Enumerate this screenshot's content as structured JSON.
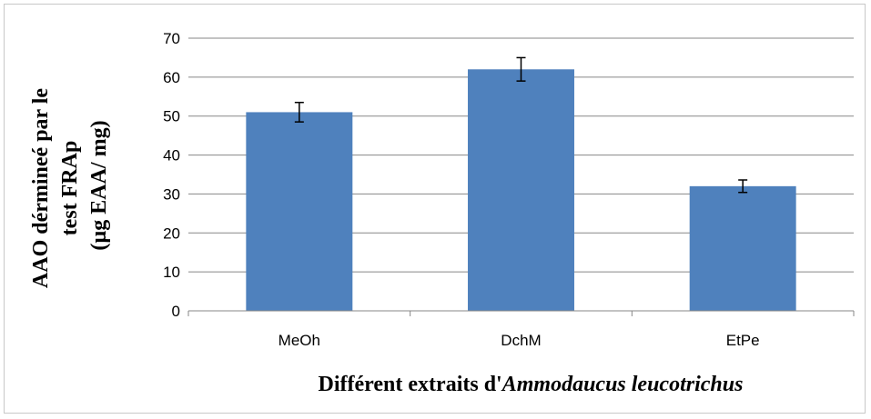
{
  "chart_data": {
    "type": "bar",
    "categories": [
      "MeOh",
      "DchM",
      "EtPe"
    ],
    "values": [
      51,
      62,
      32
    ],
    "error": [
      2.5,
      3.0,
      1.6
    ],
    "ylim": [
      0,
      70
    ],
    "yticks": [
      0,
      10,
      20,
      30,
      40,
      50,
      60,
      70
    ],
    "grid": true,
    "bar_color": "#4f81bd",
    "ylabel_lines": [
      "AAO dérmineé par le",
      "test FRAp",
      "(µg EAA/ mg)"
    ],
    "xlabel_prefix": "Différent extraits d'",
    "xlabel_species": "Ammodaucus leucotrichus"
  }
}
